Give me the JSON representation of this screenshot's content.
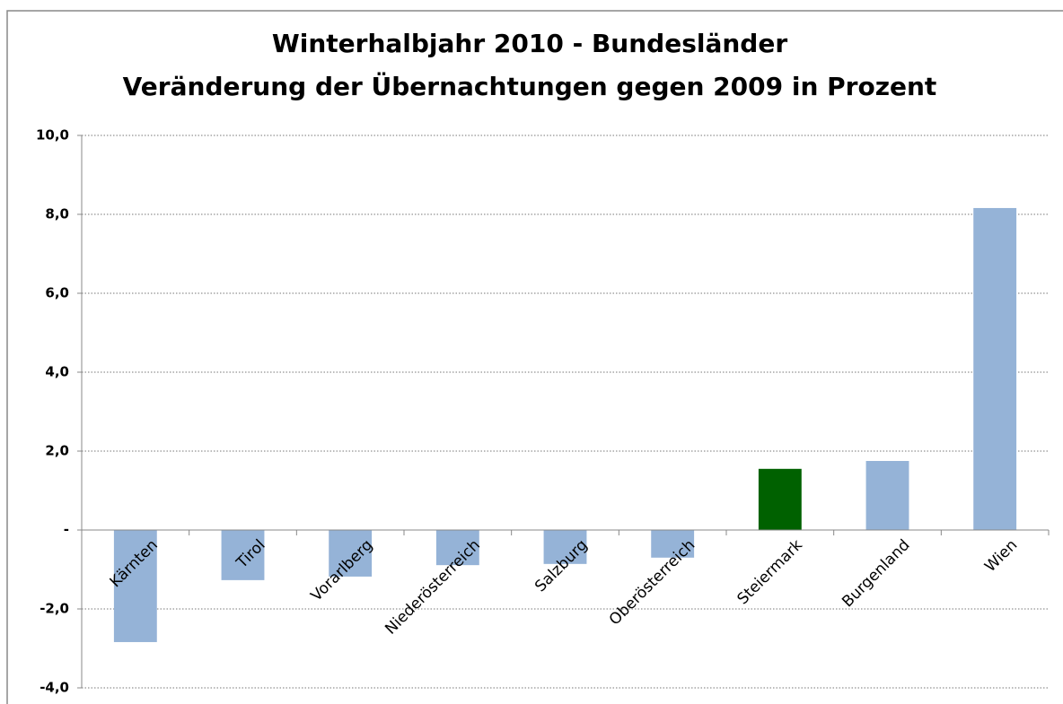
{
  "chart_data": {
    "type": "bar",
    "title": "Winterhalbjahr 2010 - Bundesländer",
    "subtitle": "Veränderung der Übernachtungen gegen 2009 in Prozent",
    "categories": [
      "Kärnten",
      "Tirol",
      "Vorarlberg",
      "Niederösterreich",
      "Salzburg",
      "Oberösterreich",
      "Steiermark",
      "Burgenland",
      "Wien"
    ],
    "values": [
      -2.84,
      -1.27,
      -1.18,
      -0.89,
      -0.86,
      -0.7,
      1.55,
      1.75,
      8.16
    ],
    "colors": [
      "#95b3d7",
      "#95b3d7",
      "#95b3d7",
      "#95b3d7",
      "#95b3d7",
      "#95b3d7",
      "#006100",
      "#95b3d7",
      "#95b3d7"
    ],
    "ylim": [
      -4,
      10
    ],
    "yticks": [
      {
        "value": -4,
        "label": "-4,0"
      },
      {
        "value": -2,
        "label": "-2,0"
      },
      {
        "value": 0,
        "label": "-"
      },
      {
        "value": 2,
        "label": "2,0"
      },
      {
        "value": 4,
        "label": "4,0"
      },
      {
        "value": 6,
        "label": "6,0"
      },
      {
        "value": 8,
        "label": "8,0"
      },
      {
        "value": 10,
        "label": "10,0"
      }
    ],
    "grid": true
  }
}
